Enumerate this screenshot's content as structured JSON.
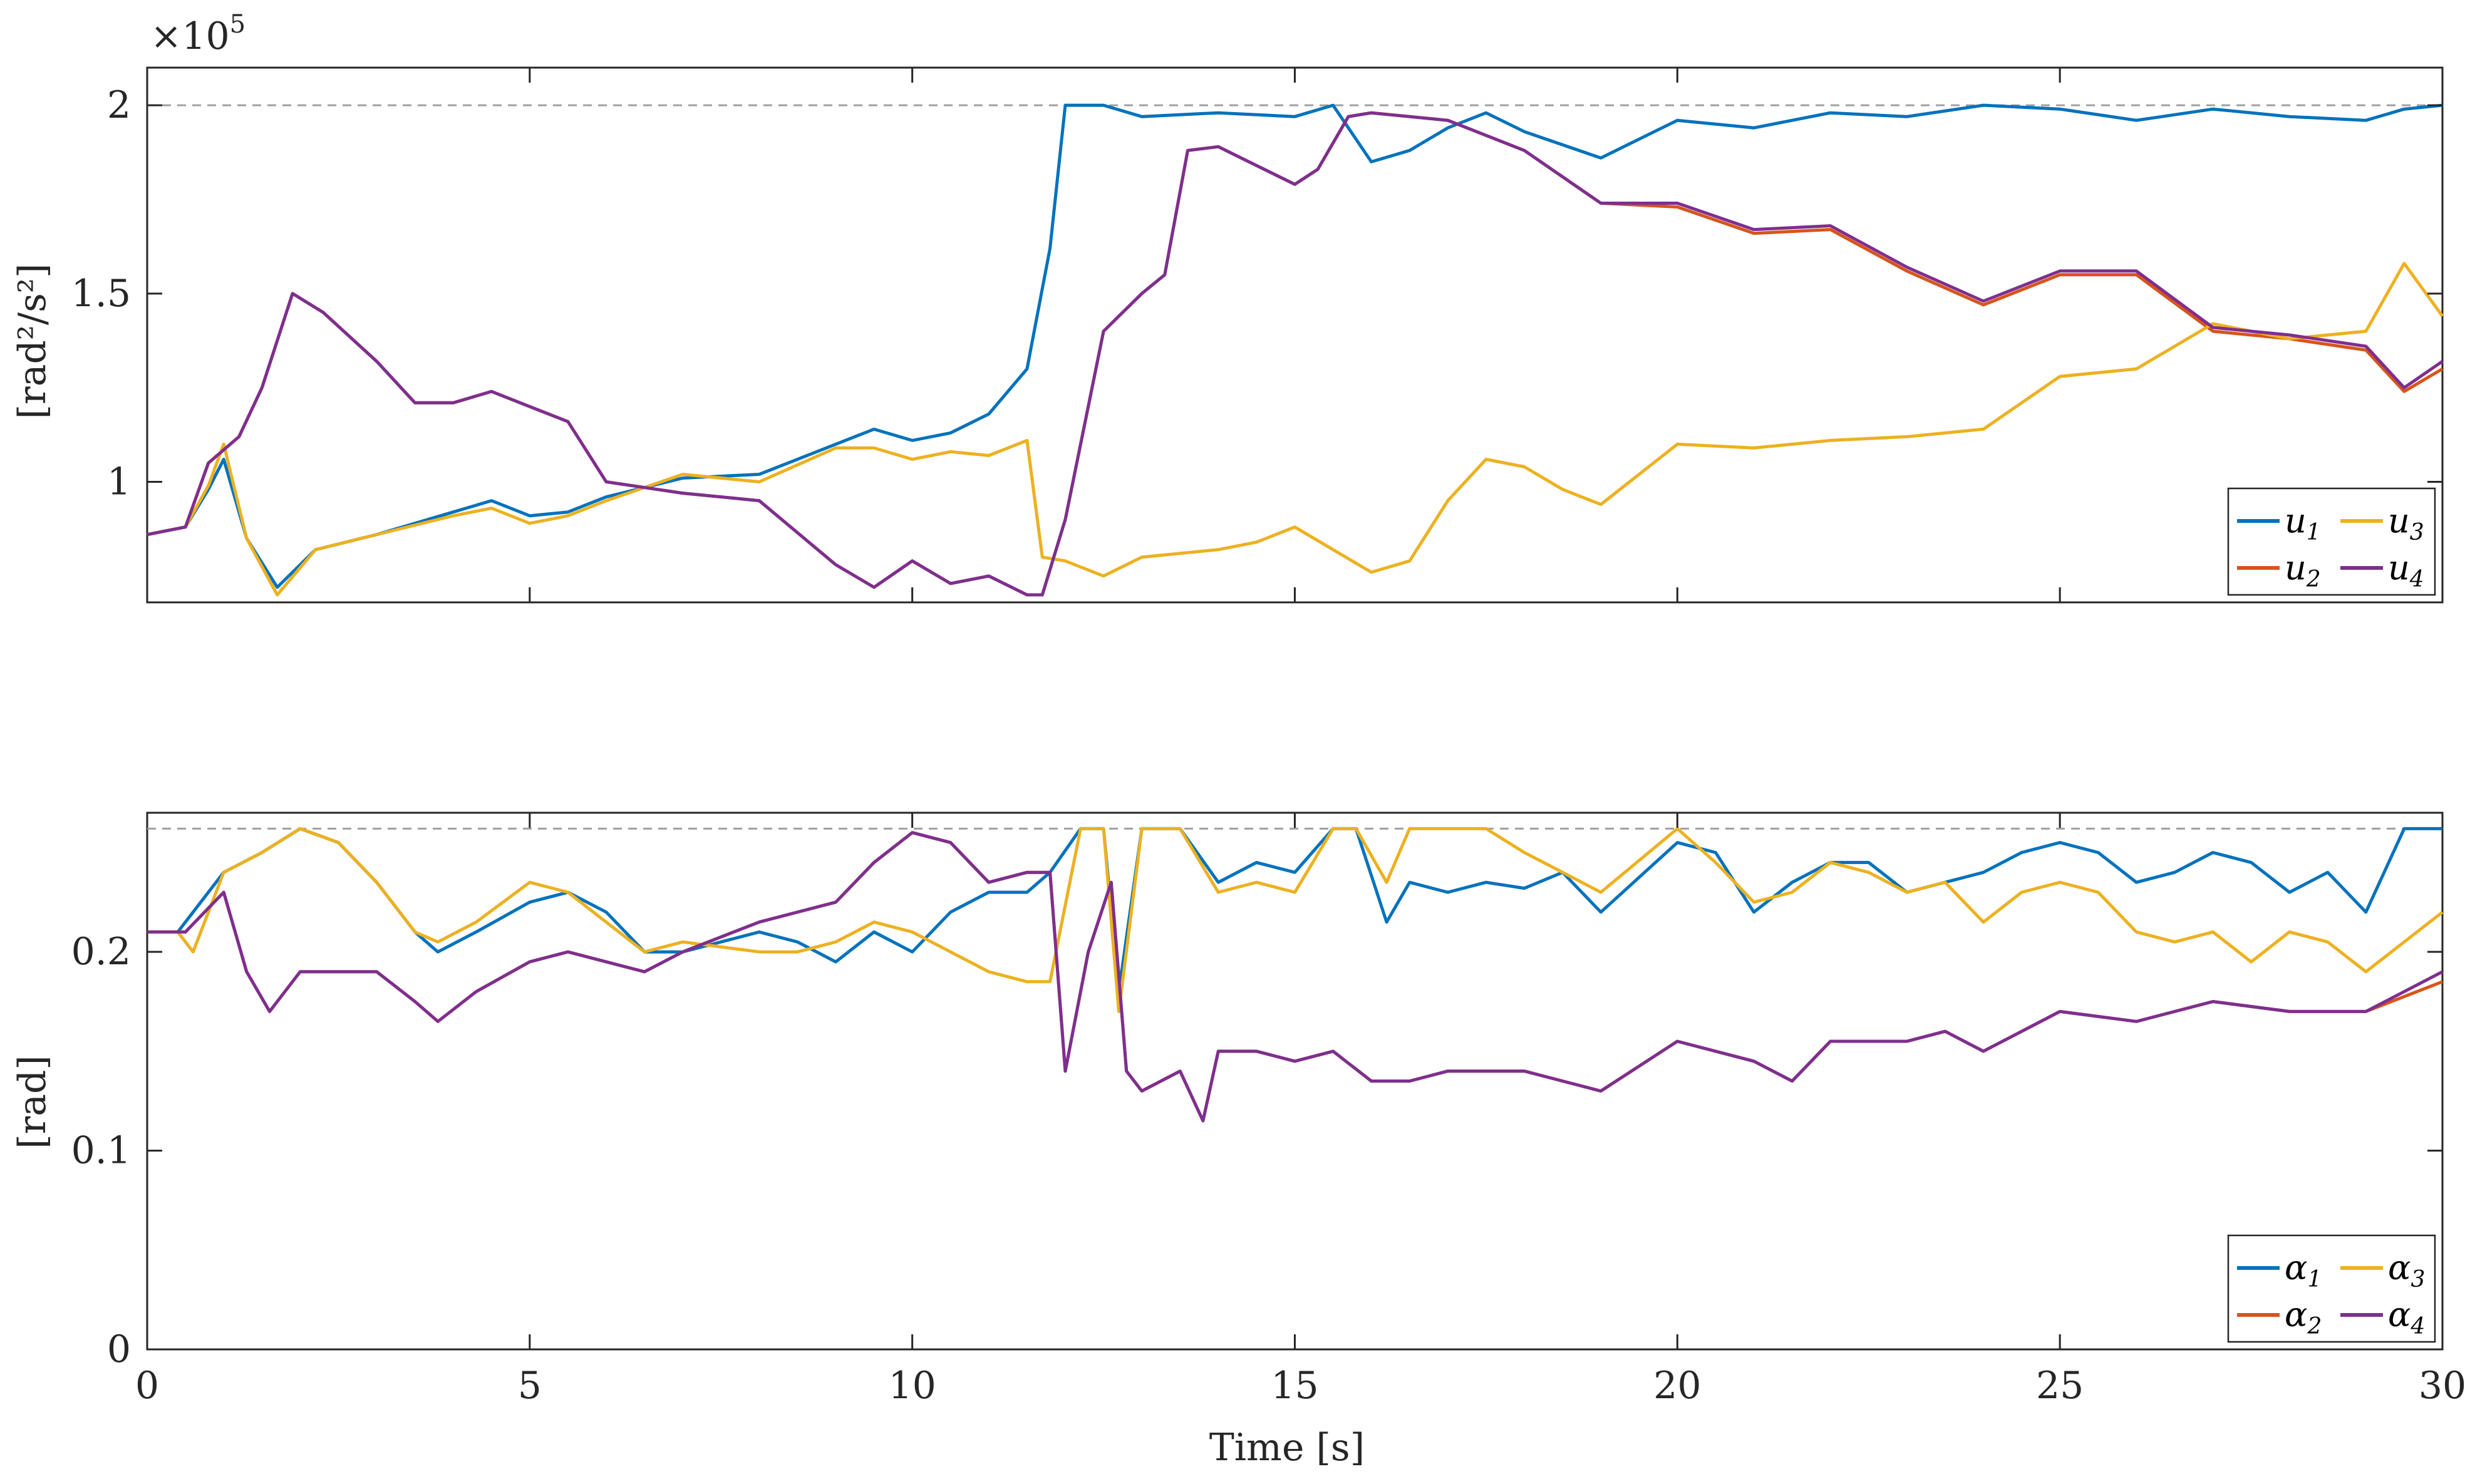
{
  "chart_data": [
    {
      "type": "line",
      "ylabel": "[rad²/s²]",
      "exponent_label": "×10",
      "exponent_power": "5",
      "xlim": [
        0,
        30
      ],
      "ylim": [
        0.68,
        2.1
      ],
      "xticks": [
        0,
        5,
        10,
        15,
        20,
        25,
        30
      ],
      "yticks": [
        1,
        1.5,
        2
      ],
      "ytick_labels": [
        "1",
        "1.5",
        "2"
      ],
      "grid": false,
      "legend_position": "bottom-right",
      "legend_columns": 2,
      "reference_line": {
        "y": 2.0,
        "style": "dashed",
        "color": "#a0a0a0"
      },
      "series": [
        {
          "name": "u",
          "sub": "1",
          "color": "#0072BD",
          "x": [
            0,
            0.5,
            0.8,
            1.0,
            1.3,
            1.7,
            2.2,
            3,
            4,
            4.5,
            5,
            5.5,
            6,
            7,
            8,
            9,
            9.5,
            10,
            10.5,
            11,
            11.5,
            11.8,
            12.0,
            12.5,
            13,
            14,
            15,
            15.5,
            16,
            16.5,
            17,
            17.5,
            18,
            19,
            20,
            21,
            22,
            23,
            24,
            25,
            26,
            27,
            28,
            29,
            29.5,
            30
          ],
          "y": [
            0.86,
            0.88,
            0.98,
            1.06,
            0.85,
            0.72,
            0.82,
            0.86,
            0.92,
            0.95,
            0.91,
            0.92,
            0.96,
            1.01,
            1.02,
            1.1,
            1.14,
            1.11,
            1.13,
            1.18,
            1.3,
            1.62,
            2.0,
            2.0,
            1.97,
            1.98,
            1.97,
            2.0,
            1.85,
            1.88,
            1.94,
            1.98,
            1.93,
            1.86,
            1.96,
            1.94,
            1.98,
            1.97,
            2.0,
            1.99,
            1.96,
            1.99,
            1.97,
            1.96,
            1.99,
            2.0
          ]
        },
        {
          "name": "u",
          "sub": "2",
          "color": "#D95319",
          "x": [
            0,
            0.5,
            0.8,
            1.2,
            1.5,
            1.9,
            2.3,
            3,
            3.5,
            4,
            4.5,
            5,
            5.5,
            6,
            7,
            8,
            9,
            9.5,
            10,
            10.5,
            11,
            11.5,
            11.7,
            12,
            12.3,
            12.5,
            13,
            13.3,
            13.6,
            14,
            14.5,
            15,
            15.3,
            15.7,
            16,
            17,
            18,
            19,
            20,
            21,
            22,
            23,
            24,
            25,
            26,
            27,
            28,
            29,
            29.5,
            30
          ],
          "y": [
            0.86,
            0.88,
            1.05,
            1.12,
            1.25,
            1.5,
            1.45,
            1.32,
            1.21,
            1.21,
            1.24,
            1.2,
            1.16,
            1.0,
            0.97,
            0.95,
            0.78,
            0.72,
            0.79,
            0.73,
            0.75,
            0.7,
            0.7,
            0.9,
            1.2,
            1.4,
            1.5,
            1.55,
            1.88,
            1.89,
            1.84,
            1.79,
            1.83,
            1.97,
            1.98,
            1.96,
            1.88,
            1.74,
            1.73,
            1.66,
            1.67,
            1.56,
            1.47,
            1.55,
            1.55,
            1.4,
            1.38,
            1.35,
            1.24,
            1.3
          ]
        },
        {
          "name": "u",
          "sub": "3",
          "color": "#EDB120",
          "x": [
            0,
            0.5,
            0.8,
            1.0,
            1.3,
            1.7,
            2.2,
            3,
            4,
            4.5,
            5,
            5.5,
            6,
            7,
            8,
            9,
            9.5,
            10,
            10.5,
            11,
            11.5,
            11.7,
            12,
            12.5,
            13,
            14,
            14.5,
            15,
            15.5,
            16,
            16.5,
            17,
            17.5,
            18,
            18.5,
            19,
            20,
            21,
            22,
            23,
            24,
            25,
            26,
            27,
            28,
            29,
            29.5,
            30
          ],
          "y": [
            0.86,
            0.88,
            0.99,
            1.1,
            0.85,
            0.7,
            0.82,
            0.86,
            0.91,
            0.93,
            0.89,
            0.91,
            0.95,
            1.02,
            1.0,
            1.09,
            1.09,
            1.06,
            1.08,
            1.07,
            1.11,
            0.8,
            0.79,
            0.75,
            0.8,
            0.82,
            0.84,
            0.88,
            0.82,
            0.76,
            0.79,
            0.95,
            1.06,
            1.04,
            0.98,
            0.94,
            1.1,
            1.09,
            1.11,
            1.12,
            1.14,
            1.28,
            1.3,
            1.42,
            1.38,
            1.4,
            1.58,
            1.44
          ]
        },
        {
          "name": "u",
          "sub": "4",
          "color": "#7E2F8E",
          "x": [
            0,
            0.5,
            0.8,
            1.2,
            1.5,
            1.9,
            2.3,
            3,
            3.5,
            4,
            4.5,
            5,
            5.5,
            6,
            7,
            8,
            9,
            9.5,
            10,
            10.5,
            11,
            11.5,
            11.7,
            12,
            12.3,
            12.5,
            13,
            13.3,
            13.6,
            14,
            14.5,
            15,
            15.3,
            15.7,
            16,
            17,
            18,
            19,
            20,
            21,
            22,
            23,
            24,
            25,
            26,
            27,
            28,
            29,
            29.5,
            30
          ],
          "y": [
            0.86,
            0.88,
            1.05,
            1.12,
            1.25,
            1.5,
            1.45,
            1.32,
            1.21,
            1.21,
            1.24,
            1.2,
            1.16,
            1.0,
            0.97,
            0.95,
            0.78,
            0.72,
            0.79,
            0.73,
            0.75,
            0.7,
            0.7,
            0.9,
            1.2,
            1.4,
            1.5,
            1.55,
            1.88,
            1.89,
            1.84,
            1.79,
            1.83,
            1.97,
            1.98,
            1.96,
            1.88,
            1.74,
            1.74,
            1.67,
            1.68,
            1.57,
            1.48,
            1.56,
            1.56,
            1.41,
            1.39,
            1.36,
            1.25,
            1.32
          ]
        }
      ]
    },
    {
      "type": "line",
      "xlabel": "Time [s]",
      "ylabel": "[rad]",
      "xlim": [
        0,
        30
      ],
      "ylim": [
        0,
        0.27
      ],
      "xticks": [
        0,
        5,
        10,
        15,
        20,
        25,
        30
      ],
      "xtick_labels": [
        "0",
        "5",
        "10",
        "15",
        "20",
        "25",
        "30"
      ],
      "yticks": [
        0,
        0.1,
        0.2
      ],
      "ytick_labels": [
        "0",
        "0.1",
        "0.2"
      ],
      "grid": false,
      "legend_position": "bottom-right",
      "legend_columns": 2,
      "reference_line": {
        "y": 0.262,
        "style": "dashed",
        "color": "#a0a0a0"
      },
      "series": [
        {
          "name": "α",
          "sub": "1",
          "color": "#0072BD",
          "x": [
            0,
            0.4,
            0.6,
            1.0,
            1.5,
            2.0,
            2.5,
            3,
            3.5,
            3.8,
            4.3,
            5,
            5.5,
            6,
            6.5,
            7,
            8,
            8.5,
            9,
            9.5,
            10,
            10.5,
            11,
            11.5,
            11.8,
            12.2,
            12.5,
            12.7,
            13,
            13.5,
            14,
            14.5,
            15,
            15.5,
            15.8,
            16.2,
            16.5,
            17,
            17.5,
            18,
            18.5,
            19,
            20,
            20.5,
            21,
            21.5,
            22,
            22.5,
            23,
            23.5,
            24,
            24.5,
            25,
            25.5,
            26,
            26.5,
            27,
            27.5,
            28,
            28.5,
            29,
            29.5,
            30
          ],
          "y": [
            0.21,
            0.21,
            0.22,
            0.24,
            0.25,
            0.262,
            0.255,
            0.235,
            0.21,
            0.2,
            0.21,
            0.225,
            0.23,
            0.22,
            0.2,
            0.2,
            0.21,
            0.205,
            0.195,
            0.21,
            0.2,
            0.22,
            0.23,
            0.23,
            0.24,
            0.262,
            0.262,
            0.18,
            0.262,
            0.262,
            0.235,
            0.245,
            0.24,
            0.262,
            0.262,
            0.215,
            0.235,
            0.23,
            0.235,
            0.232,
            0.24,
            0.22,
            0.255,
            0.25,
            0.22,
            0.235,
            0.245,
            0.245,
            0.23,
            0.235,
            0.24,
            0.25,
            0.255,
            0.25,
            0.235,
            0.24,
            0.25,
            0.245,
            0.23,
            0.24,
            0.22,
            0.262,
            0.262
          ]
        },
        {
          "name": "α",
          "sub": "2",
          "color": "#D95319",
          "x": [
            0,
            0.5,
            1.0,
            1.3,
            1.6,
            2.0,
            2.5,
            3,
            3.5,
            3.8,
            4.3,
            5,
            5.5,
            6,
            6.5,
            7,
            8,
            9,
            9.5,
            10,
            10.5,
            11,
            11.5,
            11.8,
            12.0,
            12.3,
            12.6,
            12.8,
            13,
            13.5,
            13.8,
            14,
            14.5,
            15,
            15.5,
            16,
            16.5,
            17,
            18,
            18.5,
            19,
            20,
            21,
            21.5,
            22,
            23,
            23.5,
            24,
            25,
            26,
            27,
            28,
            29,
            30
          ],
          "y": [
            0.21,
            0.21,
            0.23,
            0.19,
            0.17,
            0.19,
            0.19,
            0.19,
            0.175,
            0.165,
            0.18,
            0.195,
            0.2,
            0.195,
            0.19,
            0.2,
            0.215,
            0.225,
            0.245,
            0.26,
            0.255,
            0.235,
            0.24,
            0.24,
            0.14,
            0.2,
            0.235,
            0.14,
            0.13,
            0.14,
            0.115,
            0.15,
            0.15,
            0.145,
            0.15,
            0.135,
            0.135,
            0.14,
            0.14,
            0.135,
            0.13,
            0.155,
            0.145,
            0.135,
            0.155,
            0.155,
            0.16,
            0.15,
            0.17,
            0.165,
            0.175,
            0.17,
            0.17,
            0.185
          ]
        },
        {
          "name": "α",
          "sub": "3",
          "color": "#EDB120",
          "x": [
            0,
            0.4,
            0.6,
            1.0,
            1.5,
            2.0,
            2.5,
            3,
            3.5,
            3.8,
            4.3,
            5,
            5.5,
            6,
            6.5,
            7,
            8,
            8.5,
            9,
            9.5,
            10,
            10.5,
            11,
            11.5,
            11.8,
            12.2,
            12.5,
            12.7,
            13,
            13.5,
            14,
            14.5,
            15,
            15.5,
            15.8,
            16.2,
            16.5,
            17,
            17.5,
            18,
            18.5,
            19,
            20,
            20.5,
            21,
            21.5,
            22,
            22.5,
            23,
            23.5,
            24,
            24.5,
            25,
            25.5,
            26,
            26.5,
            27,
            27.5,
            28,
            28.5,
            29,
            29.5,
            30
          ],
          "y": [
            0.21,
            0.21,
            0.2,
            0.24,
            0.25,
            0.262,
            0.255,
            0.235,
            0.21,
            0.205,
            0.215,
            0.235,
            0.23,
            0.215,
            0.2,
            0.205,
            0.2,
            0.2,
            0.205,
            0.215,
            0.21,
            0.2,
            0.19,
            0.185,
            0.185,
            0.262,
            0.262,
            0.17,
            0.262,
            0.262,
            0.23,
            0.235,
            0.23,
            0.262,
            0.262,
            0.235,
            0.262,
            0.262,
            0.262,
            0.25,
            0.24,
            0.23,
            0.262,
            0.245,
            0.225,
            0.23,
            0.245,
            0.24,
            0.23,
            0.235,
            0.215,
            0.23,
            0.235,
            0.23,
            0.21,
            0.205,
            0.21,
            0.195,
            0.21,
            0.205,
            0.19,
            0.205,
            0.22
          ]
        },
        {
          "name": "α",
          "sub": "4",
          "color": "#7E2F8E",
          "x": [
            0,
            0.5,
            1.0,
            1.3,
            1.6,
            2.0,
            2.5,
            3,
            3.5,
            3.8,
            4.3,
            5,
            5.5,
            6,
            6.5,
            7,
            8,
            9,
            9.5,
            10,
            10.5,
            11,
            11.5,
            11.8,
            12.0,
            12.3,
            12.6,
            12.8,
            13,
            13.5,
            13.8,
            14,
            14.5,
            15,
            15.5,
            16,
            16.5,
            17,
            18,
            18.5,
            19,
            20,
            21,
            21.5,
            22,
            23,
            23.5,
            24,
            25,
            26,
            27,
            28,
            29,
            30
          ],
          "y": [
            0.21,
            0.21,
            0.23,
            0.19,
            0.17,
            0.19,
            0.19,
            0.19,
            0.175,
            0.165,
            0.18,
            0.195,
            0.2,
            0.195,
            0.19,
            0.2,
            0.215,
            0.225,
            0.245,
            0.26,
            0.255,
            0.235,
            0.24,
            0.24,
            0.14,
            0.2,
            0.235,
            0.14,
            0.13,
            0.14,
            0.115,
            0.15,
            0.15,
            0.145,
            0.15,
            0.135,
            0.135,
            0.14,
            0.14,
            0.135,
            0.13,
            0.155,
            0.145,
            0.135,
            0.155,
            0.155,
            0.16,
            0.15,
            0.17,
            0.165,
            0.175,
            0.17,
            0.17,
            0.19
          ]
        }
      ]
    }
  ]
}
